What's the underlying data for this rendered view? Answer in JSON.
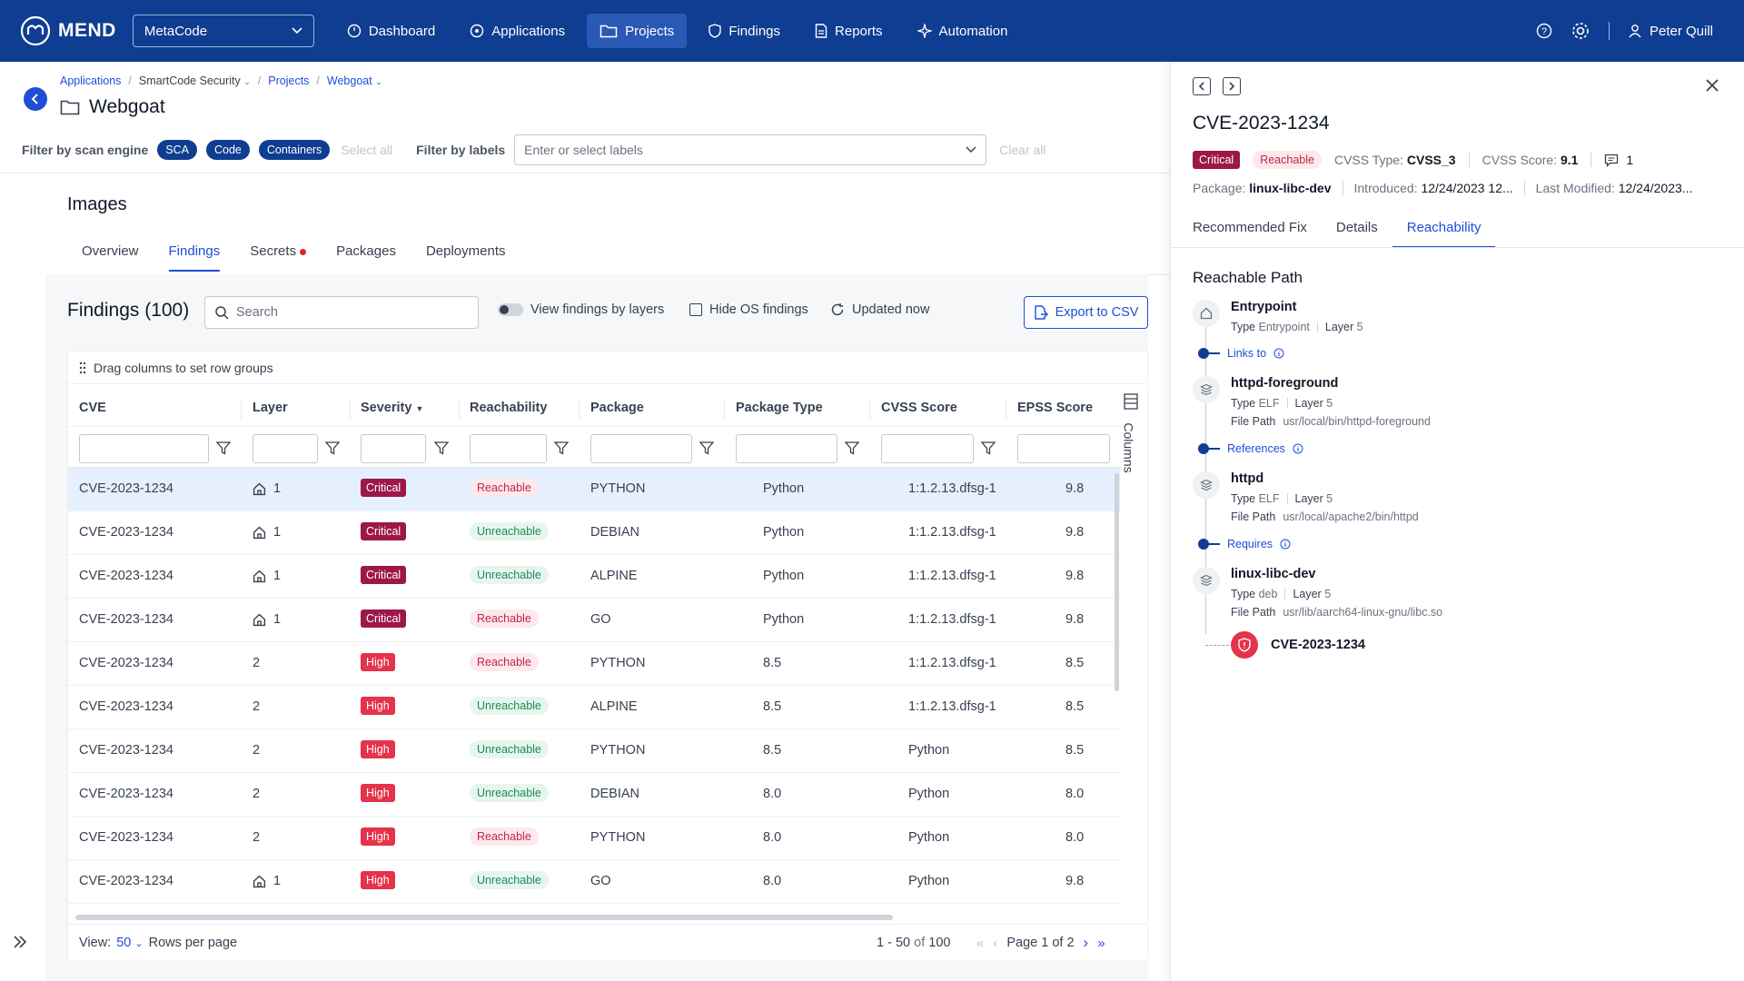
{
  "brand": {
    "name": "MEND"
  },
  "org_selector": {
    "value": "MetaCode"
  },
  "nav": {
    "items": [
      {
        "label": "Dashboard",
        "icon": "gauge-icon"
      },
      {
        "label": "Applications",
        "icon": "applications-icon"
      },
      {
        "label": "Projects",
        "icon": "folder-icon",
        "active": true
      },
      {
        "label": "Findings",
        "icon": "shield-icon"
      },
      {
        "label": "Reports",
        "icon": "report-icon"
      },
      {
        "label": "Automation",
        "icon": "sparkle-icon"
      }
    ],
    "user": "Peter Quill"
  },
  "breadcrumb": {
    "b1": "Applications",
    "b2": "SmartCode Security",
    "b3": "Projects",
    "b4": "Webgoat"
  },
  "page": {
    "title": "Webgoat"
  },
  "filters": {
    "scan_engine_label": "Filter by scan engine",
    "engines": [
      "SCA",
      "Code",
      "Containers"
    ],
    "select_all": "Select all",
    "labels_label": "Filter by labels",
    "labels_placeholder": "Enter or select labels",
    "clear_all": "Clear all"
  },
  "section": {
    "title": "Images"
  },
  "tabs": {
    "t1": "Overview",
    "t2": "Findings",
    "t3": "Secrets",
    "t4": "Packages",
    "t5": "Deployments"
  },
  "findings": {
    "title": "Findings (100)",
    "search_placeholder": "Search",
    "view_by_layers": "View findings by layers",
    "hide_os": "Hide OS findings",
    "updated": "Updated now",
    "export": "Export to CSV",
    "group_hint": "Drag columns to set row groups",
    "columns_label": "Columns",
    "headers": {
      "cve": "CVE",
      "layer": "Layer",
      "severity": "Severity",
      "reachability": "Reachability",
      "package": "Package",
      "package_type": "Package Type",
      "cvss": "CVSS Score",
      "epss": "EPSS Score"
    },
    "rows": [
      {
        "cve": "CVE-2023-1234",
        "base": true,
        "layer": "1",
        "severity": "Critical",
        "reach": "Reachable",
        "package": "PYTHON",
        "ptype": "Python",
        "cvss": "1:1.2.13.dfsg-1",
        "epss": "9.8"
      },
      {
        "cve": "CVE-2023-1234",
        "base": true,
        "layer": "1",
        "severity": "Critical",
        "reach": "Unreachable",
        "package": "DEBIAN",
        "ptype": "Python",
        "cvss": "1:1.2.13.dfsg-1",
        "epss": "9.8"
      },
      {
        "cve": "CVE-2023-1234",
        "base": true,
        "layer": "1",
        "severity": "Critical",
        "reach": "Unreachable",
        "package": "ALPINE",
        "ptype": "Python",
        "cvss": "1:1.2.13.dfsg-1",
        "epss": "9.8"
      },
      {
        "cve": "CVE-2023-1234",
        "base": true,
        "layer": "1",
        "severity": "Critical",
        "reach": "Reachable",
        "package": "GO",
        "ptype": "Python",
        "cvss": "1:1.2.13.dfsg-1",
        "epss": "9.8"
      },
      {
        "cve": "CVE-2023-1234",
        "base": false,
        "layer": "2",
        "severity": "High",
        "reach": "Reachable",
        "package": "PYTHON",
        "ptype": "8.5",
        "cvss": "1:1.2.13.dfsg-1",
        "epss": "8.5"
      },
      {
        "cve": "CVE-2023-1234",
        "base": false,
        "layer": "2",
        "severity": "High",
        "reach": "Unreachable",
        "package": "ALPINE",
        "ptype": "8.5",
        "cvss": "1:1.2.13.dfsg-1",
        "epss": "8.5"
      },
      {
        "cve": "CVE-2023-1234",
        "base": false,
        "layer": "2",
        "severity": "High",
        "reach": "Unreachable",
        "package": "PYTHON",
        "ptype": "8.5",
        "cvss": "Python",
        "epss": "8.5"
      },
      {
        "cve": "CVE-2023-1234",
        "base": false,
        "layer": "2",
        "severity": "High",
        "reach": "Unreachable",
        "package": "DEBIAN",
        "ptype": "8.0",
        "cvss": "Python",
        "epss": "8.0"
      },
      {
        "cve": "CVE-2023-1234",
        "base": false,
        "layer": "2",
        "severity": "High",
        "reach": "Reachable",
        "package": "PYTHON",
        "ptype": "8.0",
        "cvss": "Python",
        "epss": "8.0"
      },
      {
        "cve": "CVE-2023-1234",
        "base": true,
        "layer": "1",
        "severity": "High",
        "reach": "Unreachable",
        "package": "GO",
        "ptype": "8.0",
        "cvss": "Python",
        "epss": "9.8"
      }
    ],
    "footer": {
      "view_label": "View:",
      "view_value": "50",
      "rows_per_page": "Rows per page",
      "range": "1 - 50",
      "of": "of",
      "total": "100",
      "page": "Page 1 of 2"
    }
  },
  "drawer": {
    "title": "CVE-2023-1234",
    "severity": "Critical",
    "reach": "Reachable",
    "cvss_type_label": "CVSS Type:",
    "cvss_type": "CVSS_3",
    "cvss_score_label": "CVSS Score:",
    "cvss_score": "9.1",
    "comments": "1",
    "package_label": "Package:",
    "package": "linux-libc-dev",
    "introduced_label": "Introduced:",
    "introduced": "12/24/2023  12...",
    "modified_label": "Last Modified:",
    "modified": "12/24/2023...",
    "tabs": {
      "t1": "Recommended Fix",
      "t2": "Details",
      "t3": "Reachability"
    },
    "path_title": "Reachable Path",
    "nodes": [
      {
        "name": "Entrypoint",
        "type": "Entrypoint",
        "layer": "5",
        "path": ""
      },
      {
        "name": "httpd-foreground",
        "type": "ELF",
        "layer": "5",
        "path": "usr/local/bin/httpd-foreground"
      },
      {
        "name": "httpd",
        "type": "ELF",
        "layer": "5",
        "path": "usr/local/apache2/bin/httpd"
      },
      {
        "name": "linux-libc-dev",
        "type": "deb",
        "layer": "5",
        "path": "usr/lib/aarch64-linux-gnu/libc.so"
      }
    ],
    "relations": {
      "r1": "Links to",
      "r2": "References",
      "r3": "Requires"
    },
    "labels": {
      "type": "Type",
      "layer": "Layer",
      "file_path": "File Path"
    },
    "cve_leaf": "CVE-2023-1234"
  }
}
